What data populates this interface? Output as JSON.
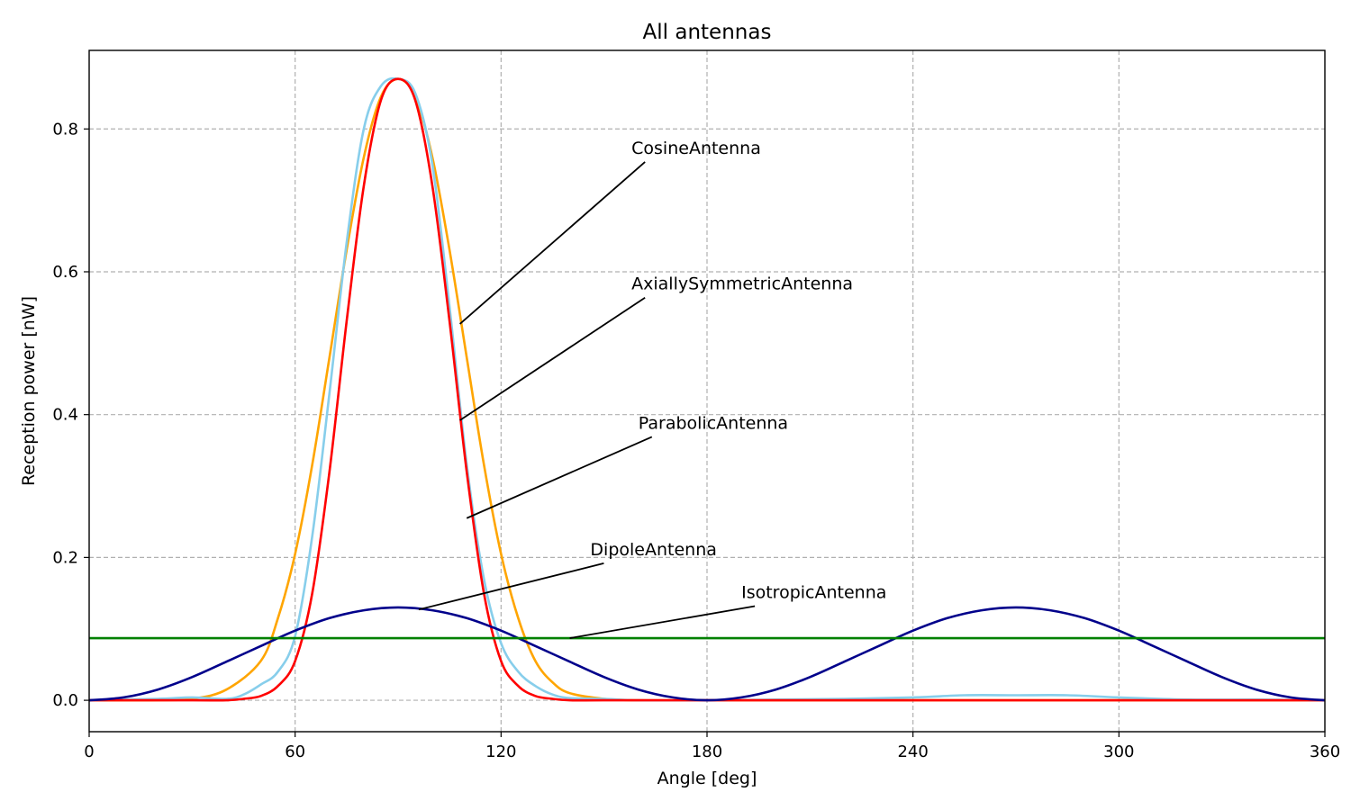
{
  "chart_data": {
    "type": "line",
    "title": "All antennas",
    "xlabel": "Angle [deg]",
    "ylabel": "Reception power [nW]",
    "xlim": [
      0,
      360
    ],
    "ylim": [
      -0.044,
      0.91
    ],
    "x_ticks": [
      0,
      60,
      120,
      180,
      240,
      300,
      360
    ],
    "y_ticks": [
      0.0,
      0.2,
      0.4,
      0.6,
      0.8
    ],
    "y_tick_labels": [
      "0.0",
      "0.2",
      "0.4",
      "0.6",
      "0.8"
    ],
    "grid": true,
    "series": [
      {
        "name": "CosineAntenna",
        "color": "#ffa500",
        "x": [
          0,
          20,
          30,
          40,
          50,
          55,
          60,
          65,
          70,
          75,
          80,
          85,
          90,
          95,
          100,
          105,
          110,
          115,
          120,
          125,
          130,
          135,
          140,
          150,
          160,
          180,
          240,
          300,
          360
        ],
        "y": [
          0.0,
          0.0,
          0.002,
          0.015,
          0.055,
          0.115,
          0.205,
          0.33,
          0.48,
          0.63,
          0.76,
          0.845,
          0.87,
          0.845,
          0.76,
          0.63,
          0.48,
          0.33,
          0.205,
          0.115,
          0.055,
          0.025,
          0.01,
          0.002,
          0.0,
          0.0,
          0.0,
          0.0,
          0.0
        ]
      },
      {
        "name": "AxiallySymmetricAntenna",
        "color": "#87ceeb",
        "x": [
          0,
          20,
          30,
          40,
          45,
          50,
          55,
          60,
          65,
          70,
          75,
          80,
          85,
          90,
          95,
          100,
          105,
          110,
          115,
          120,
          125,
          130,
          135,
          140,
          150,
          160,
          180,
          200,
          220,
          240,
          255,
          270,
          285,
          300,
          320,
          340,
          360
        ],
        "y": [
          0.0,
          0.002,
          0.004,
          0.002,
          0.008,
          0.022,
          0.04,
          0.09,
          0.23,
          0.43,
          0.64,
          0.8,
          0.86,
          0.87,
          0.85,
          0.75,
          0.55,
          0.33,
          0.17,
          0.08,
          0.04,
          0.02,
          0.008,
          0.003,
          0.002,
          0.0,
          0.0,
          0.001,
          0.002,
          0.004,
          0.007,
          0.007,
          0.007,
          0.004,
          0.001,
          0.001,
          0.0
        ]
      },
      {
        "name": "ParabolicAntenna",
        "color": "#ff0000",
        "x": [
          0,
          30,
          40,
          45,
          50,
          55,
          60,
          65,
          70,
          75,
          80,
          85,
          90,
          95,
          100,
          105,
          110,
          115,
          120,
          125,
          130,
          135,
          140,
          150,
          180,
          240,
          300,
          360
        ],
        "y": [
          0.0,
          0.0,
          0.0,
          0.002,
          0.006,
          0.02,
          0.055,
          0.15,
          0.32,
          0.53,
          0.72,
          0.84,
          0.87,
          0.84,
          0.72,
          0.53,
          0.32,
          0.15,
          0.055,
          0.02,
          0.006,
          0.002,
          0.0,
          0.0,
          0.0,
          0.0,
          0.0,
          0.0
        ]
      },
      {
        "name": "DipoleAntenna",
        "color": "#00008b",
        "x": [
          0,
          10,
          20,
          30,
          40,
          50,
          60,
          70,
          80,
          90,
          100,
          110,
          120,
          130,
          140,
          150,
          160,
          170,
          180,
          190,
          200,
          210,
          220,
          230,
          240,
          250,
          260,
          270,
          280,
          290,
          300,
          310,
          320,
          330,
          340,
          350,
          360
        ],
        "y": [
          0.0,
          0.004,
          0.015,
          0.0325,
          0.054,
          0.076,
          0.0975,
          0.115,
          0.126,
          0.13,
          0.126,
          0.115,
          0.0975,
          0.076,
          0.054,
          0.0325,
          0.015,
          0.004,
          0.0,
          0.004,
          0.015,
          0.0325,
          0.054,
          0.076,
          0.0975,
          0.115,
          0.126,
          0.13,
          0.126,
          0.115,
          0.0975,
          0.076,
          0.054,
          0.0325,
          0.015,
          0.004,
          0.0
        ]
      },
      {
        "name": "IsotropicAntenna",
        "color": "#008000",
        "x": [
          0,
          360
        ],
        "y": [
          0.087,
          0.087
        ]
      }
    ],
    "annotations": [
      {
        "text": "CosineAntenna",
        "xy": [
          108,
          0.527
        ],
        "xytext": [
          158,
          0.75
        ]
      },
      {
        "text": "AxiallySymmetricAntenna",
        "xy": [
          108,
          0.392
        ],
        "xytext": [
          158,
          0.56
        ]
      },
      {
        "text": "ParabolicAntenna",
        "xy": [
          110,
          0.255
        ],
        "xytext": [
          160,
          0.365
        ]
      },
      {
        "text": "DipoleAntenna",
        "xy": [
          96,
          0.127
        ],
        "xytext": [
          146,
          0.188
        ]
      },
      {
        "text": "IsotropicAntenna",
        "xy": [
          140,
          0.087
        ],
        "xytext": [
          190,
          0.128
        ]
      }
    ]
  }
}
